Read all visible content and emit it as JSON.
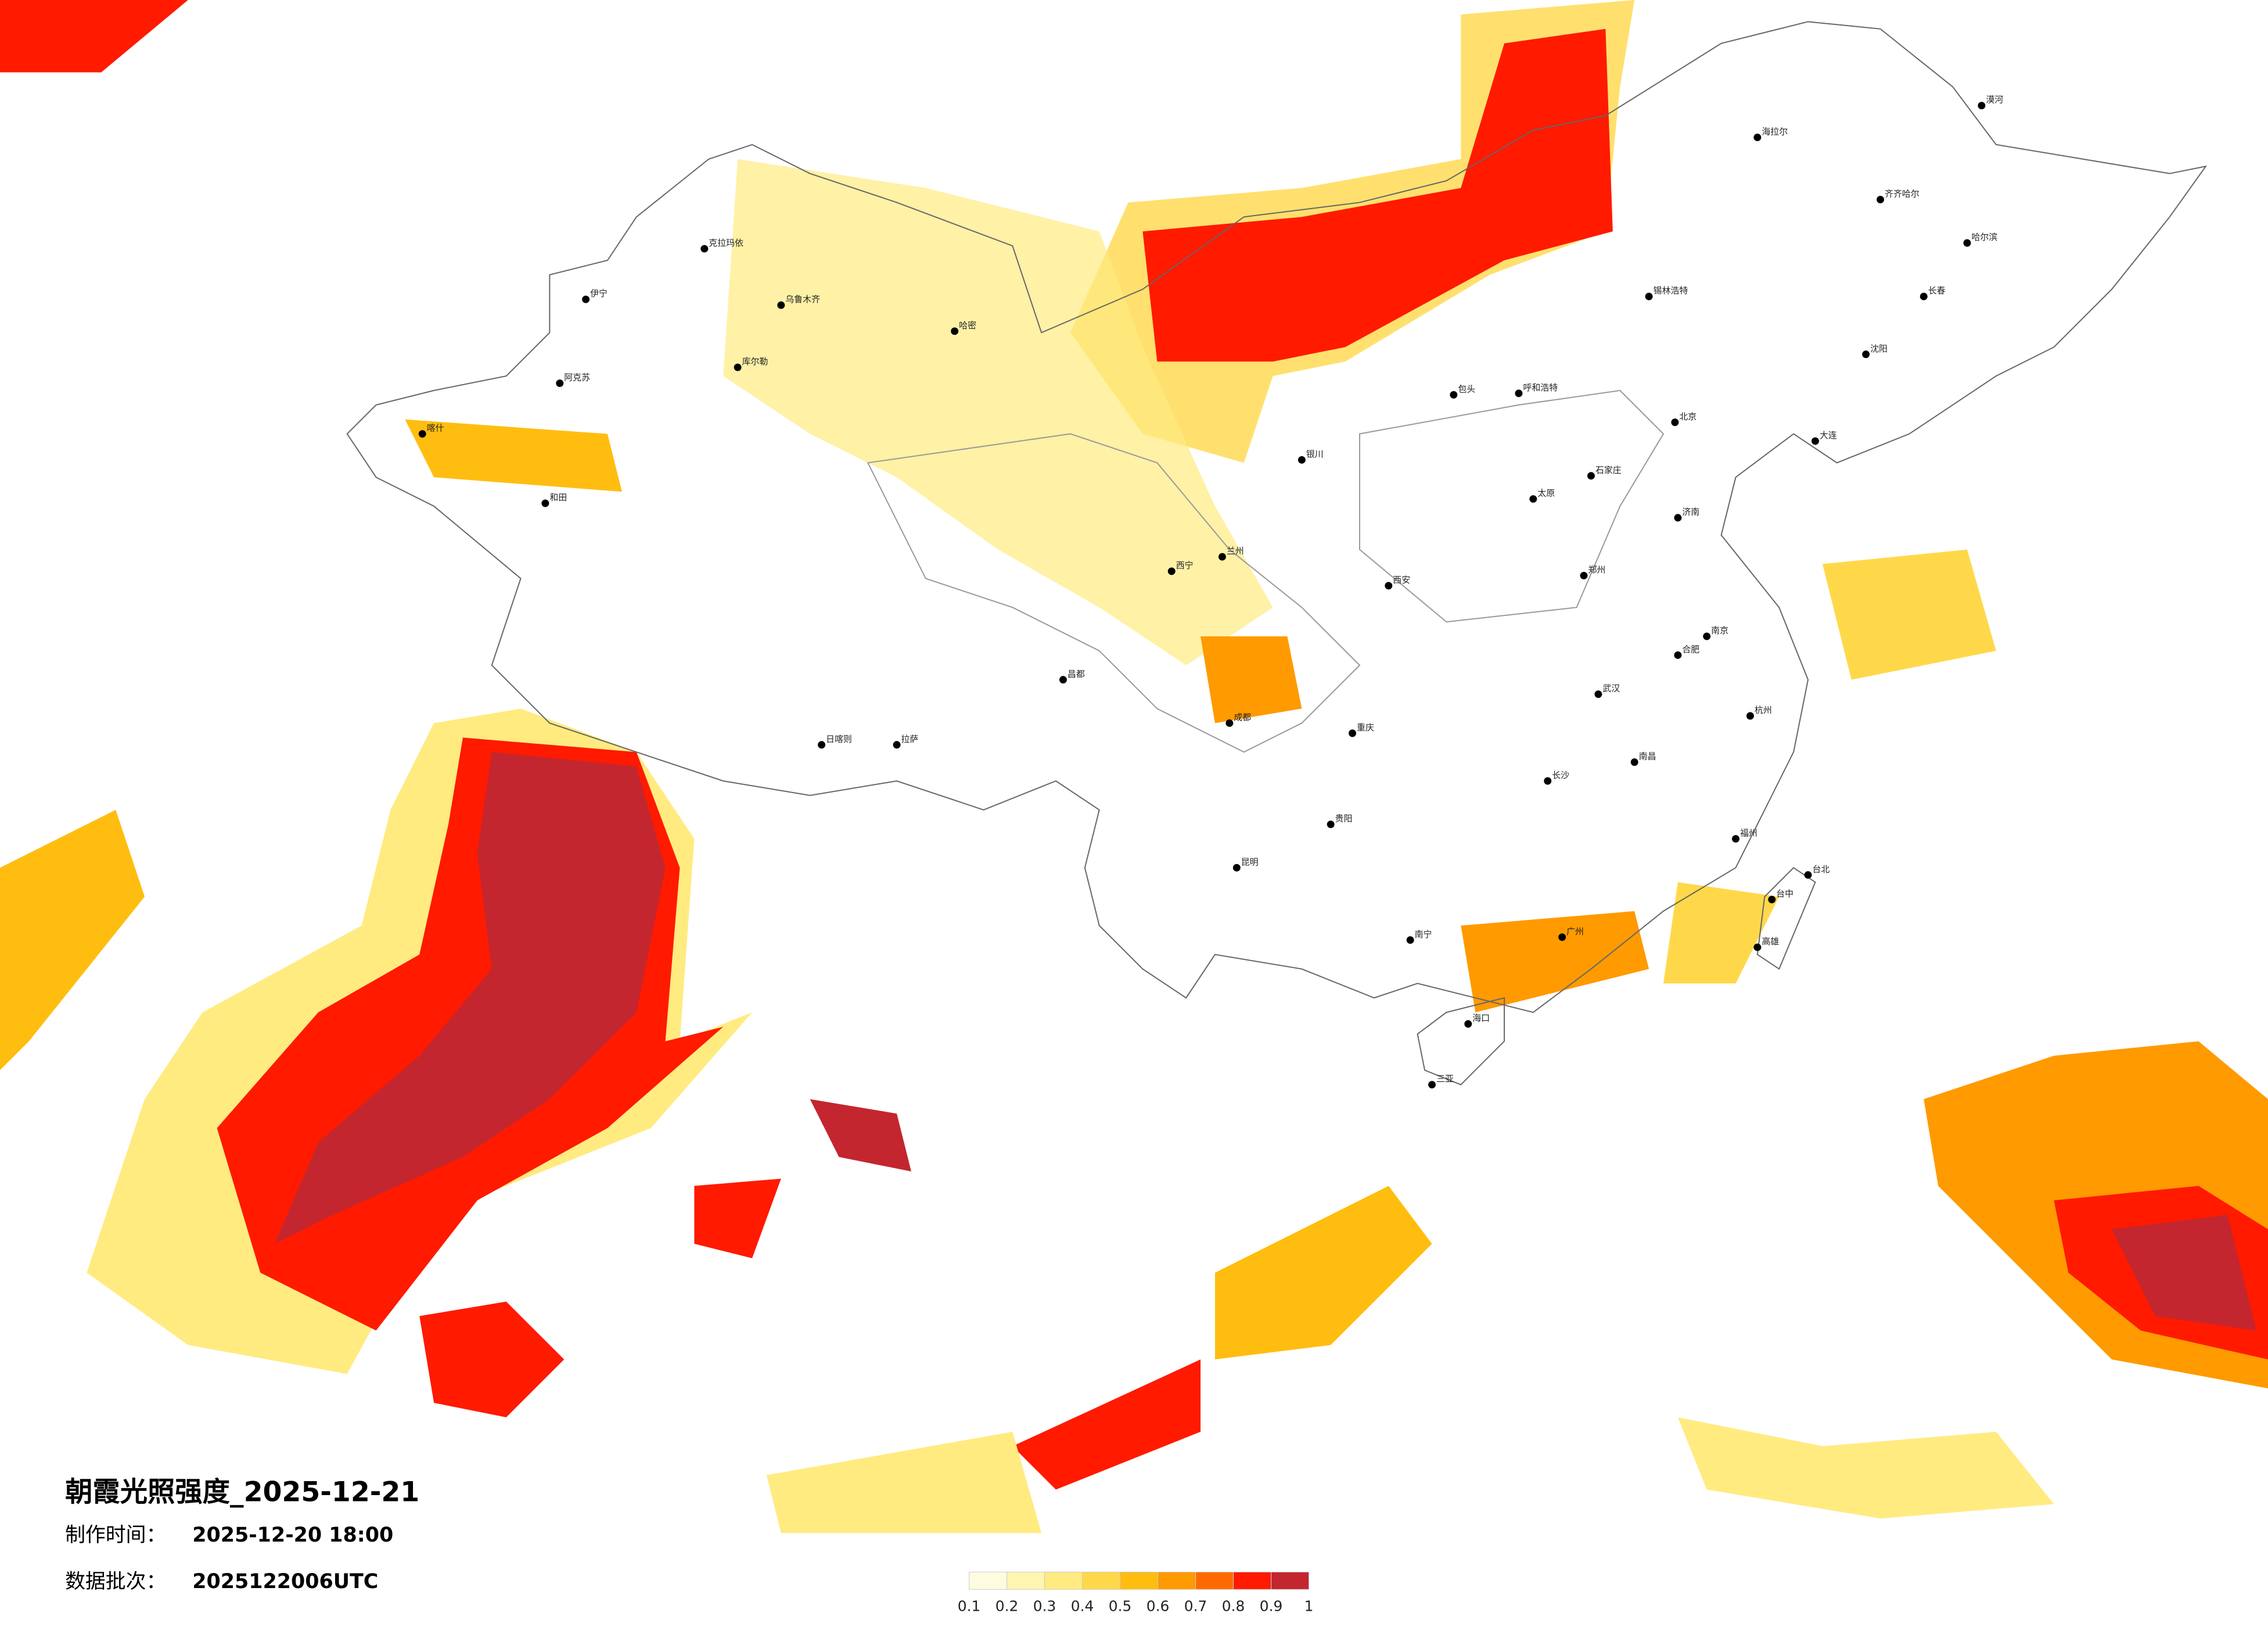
{
  "title": "朝霞光照强度_2025-12-21",
  "made_label": "制作时间：",
  "made_time": "2025-12-20 18:00",
  "batch_label": "数据批次：",
  "batch": "2025122006UTC",
  "legend": {
    "ticks": [
      0.1,
      0.2,
      0.3,
      0.4,
      0.5,
      0.6,
      0.7,
      0.8,
      0.9,
      1
    ],
    "colors": [
      "#fffbe0",
      "#fff5b0",
      "#ffeb80",
      "#ffd84a",
      "#ffbd10",
      "#ff9a00",
      "#ff6a00",
      "#ff1a00",
      "#c3262e"
    ]
  },
  "cities": [
    "乌鲁木齐",
    "克拉玛依",
    "伊宁",
    "阿克苏",
    "喀什",
    "和田",
    "哈密",
    "库尔勒",
    "拉萨",
    "日喀则",
    "昌都",
    "西宁",
    "兰州",
    "银川",
    "呼和浩特",
    "包头",
    "北京",
    "石家庄",
    "太原",
    "郑州",
    "济南",
    "西安",
    "成都",
    "重庆",
    "贵阳",
    "昆明",
    "南宁",
    "广州",
    "长沙",
    "武汉",
    "南昌",
    "福州",
    "杭州",
    "南京",
    "合肥",
    "哈尔滨",
    "长春",
    "沈阳",
    "大连",
    "海口",
    "三亚",
    "台北",
    "台中",
    "高雄",
    "漠河",
    "海拉尔",
    "齐齐哈尔",
    "锡林浩特"
  ]
}
